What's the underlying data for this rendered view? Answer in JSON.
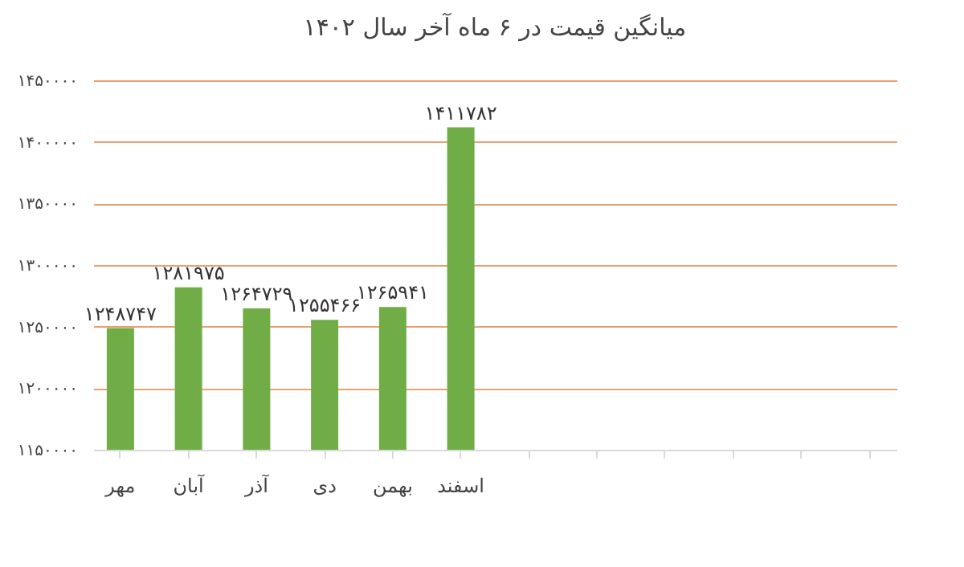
{
  "chart_data": {
    "type": "bar",
    "title": "میانگین قیمت در ۶ ماه آخر سال ۱۴۰۲",
    "categories": [
      "مهر",
      "آبان",
      "آذر",
      "دی",
      "بهمن",
      "اسفند",
      null,
      null,
      null,
      null,
      null,
      null
    ],
    "values": [
      1248747,
      1281975,
      1264729,
      1255466,
      1265941,
      1411782,
      null,
      null,
      null,
      null,
      null,
      null
    ],
    "value_labels": [
      "۱۲۴۸۷۴۷",
      "۱۲۸۱۹۷۵",
      "۱۲۶۴۷۲۹",
      "۱۲۵۵۴۶۶",
      "۱۲۶۵۹۴۱",
      "۱۴۱۱۷۸۲",
      null,
      null,
      null,
      null,
      null,
      null
    ],
    "color": "#70ad47",
    "ylim": [
      1150000,
      1450000
    ],
    "yticks": [
      {
        "value": 1150000,
        "label": "۱۱۵۰۰۰۰"
      },
      {
        "value": 1200000,
        "label": "۱۲۰۰۰۰۰"
      },
      {
        "value": 1250000,
        "label": "۱۲۵۰۰۰۰"
      },
      {
        "value": 1300000,
        "label": "۱۳۰۰۰۰۰"
      },
      {
        "value": 1350000,
        "label": "۱۳۵۰۰۰۰"
      },
      {
        "value": 1400000,
        "label": "۱۴۰۰۰۰۰"
      },
      {
        "value": 1450000,
        "label": "۱۴۵۰۰۰۰"
      }
    ],
    "grid": "y"
  }
}
